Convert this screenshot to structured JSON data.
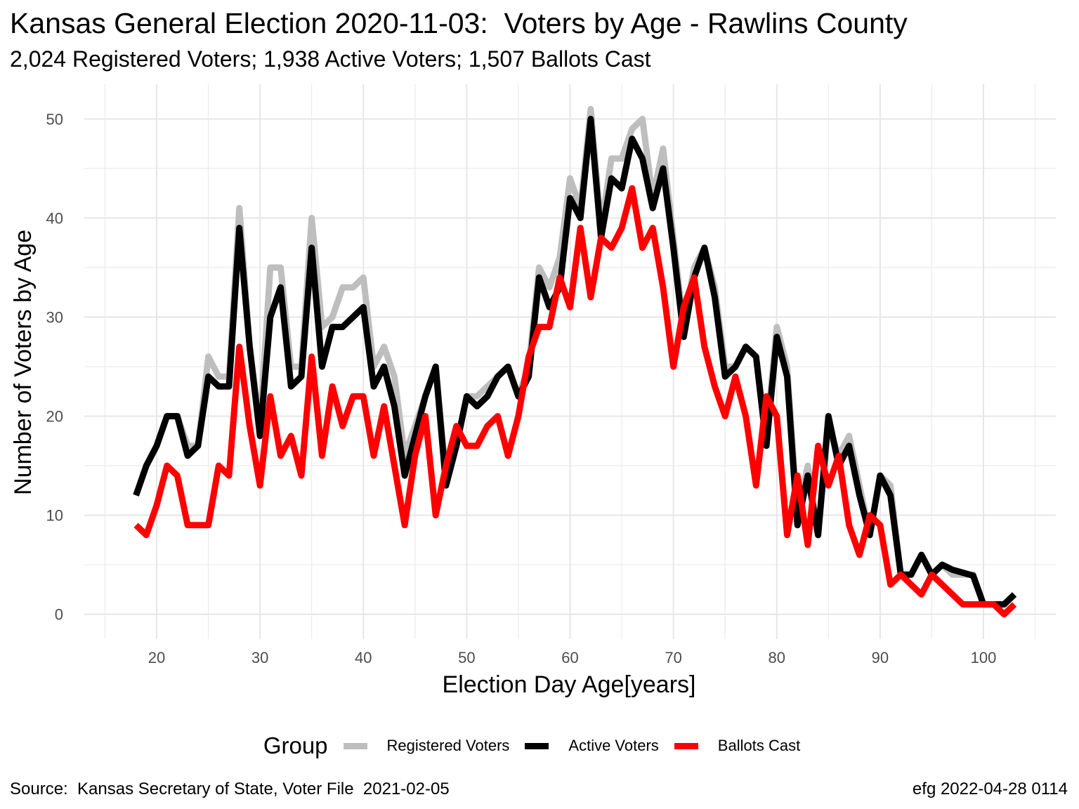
{
  "title": "Kansas General Election 2020-11-03:  Voters by Age - Rawlins County",
  "subtitle": "2,024 Registered Voters; 1,938 Active Voters; 1,507 Ballots Cast",
  "source": "Source:  Kansas Secretary of State, Voter File  2021-02-05",
  "credit": "efg 2022-04-28 0114",
  "chart_data": {
    "type": "line",
    "xlabel": "Election Day Age[years]",
    "ylabel": "Number of Voters by Age",
    "xlim": [
      13,
      107
    ],
    "ylim": [
      -2.5,
      53.5
    ],
    "x_ticks": [
      20,
      30,
      40,
      50,
      60,
      70,
      80,
      90,
      100
    ],
    "y_ticks": [
      0,
      10,
      20,
      30,
      40,
      50
    ],
    "grid": true,
    "legend_title": "Group",
    "legend_position": "bottom",
    "x": [
      18,
      19,
      20,
      21,
      22,
      23,
      24,
      25,
      26,
      27,
      28,
      29,
      30,
      31,
      32,
      33,
      34,
      35,
      36,
      37,
      38,
      39,
      40,
      41,
      42,
      43,
      44,
      45,
      46,
      47,
      48,
      49,
      50,
      51,
      52,
      53,
      54,
      55,
      56,
      57,
      58,
      59,
      60,
      61,
      62,
      63,
      64,
      65,
      66,
      67,
      68,
      69,
      70,
      71,
      72,
      73,
      74,
      75,
      76,
      77,
      78,
      79,
      80,
      81,
      82,
      83,
      84,
      85,
      86,
      87,
      88,
      89,
      90,
      91,
      92,
      93,
      94,
      95,
      96,
      97,
      98,
      99,
      100,
      101,
      102,
      103
    ],
    "series": [
      {
        "name": "Registered Voters",
        "color": "#bebebe",
        "values": [
          12,
          15,
          17,
          20,
          20,
          17,
          17,
          26,
          24,
          24,
          41,
          27,
          19,
          35,
          35,
          25,
          25,
          40,
          29,
          30,
          33,
          33,
          34,
          25,
          27,
          24,
          16,
          19,
          22,
          25,
          14,
          17,
          22,
          22,
          23,
          24,
          25,
          22,
          25,
          35,
          33,
          36,
          44,
          41,
          51,
          39,
          46,
          46,
          49,
          50,
          42,
          47,
          38,
          29,
          35,
          37,
          33,
          25,
          25,
          27,
          26,
          18,
          29,
          25,
          10,
          15,
          8,
          19,
          16,
          18,
          13,
          8,
          14,
          13,
          4,
          4,
          6,
          4,
          5,
          4,
          4,
          4,
          1,
          1,
          1,
          2
        ]
      },
      {
        "name": "Active Voters",
        "color": "#000000",
        "values": [
          12,
          15,
          17,
          20,
          20,
          16,
          17,
          24,
          23,
          23,
          39,
          27,
          18,
          30,
          33,
          23,
          24,
          37,
          25,
          29,
          29,
          30,
          31,
          23,
          25,
          21,
          14,
          18,
          22,
          25,
          13,
          17,
          22,
          21,
          22,
          24,
          25,
          22,
          24,
          34,
          31,
          33,
          42,
          40,
          50,
          38,
          44,
          43,
          48,
          46,
          41,
          45,
          37,
          28,
          34,
          37,
          32,
          24,
          25,
          27,
          26,
          17,
          28,
          24,
          9,
          14,
          8,
          20,
          15,
          17,
          12,
          8,
          14,
          12,
          4,
          4,
          6,
          4,
          5,
          4.5,
          4.2,
          3.9,
          1,
          1,
          1,
          2
        ]
      },
      {
        "name": "Ballots Cast",
        "color": "#ff0000",
        "values": [
          9,
          8,
          11,
          15,
          14,
          9,
          9,
          9,
          15,
          14,
          27,
          19,
          13,
          22,
          16,
          18,
          14,
          26,
          16,
          23,
          19,
          22,
          22,
          16,
          21,
          15,
          9,
          16,
          20,
          10,
          15,
          19,
          17,
          17,
          19,
          20,
          16,
          20,
          26,
          29,
          29,
          34,
          31,
          39,
          32,
          38,
          37,
          39,
          43,
          37,
          39,
          33,
          25,
          31,
          34,
          27,
          23,
          20,
          24,
          20,
          13,
          22,
          20,
          8,
          14,
          7,
          17,
          13,
          16,
          9,
          6,
          10,
          9,
          3,
          4,
          3,
          2,
          4,
          3,
          2,
          1,
          1,
          1,
          1,
          0,
          1
        ]
      }
    ]
  }
}
